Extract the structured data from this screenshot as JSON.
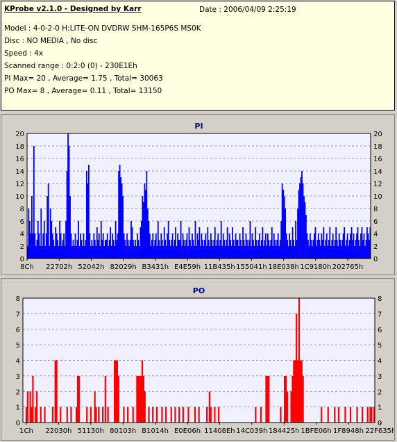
{
  "header": {
    "title": "KProbe v2.1.0 - Designed by Karr",
    "date": "Date : 2006/04/09 2:25:19",
    "model": "Model : 4-0-2-0 H:LITE-ON DVDRW SHM-165P6S MS0K",
    "disc": "Disc : NO MEDIA , No disc",
    "speed": "Speed : 4x",
    "range": "Scanned range : 0:2:0 (0) - 230E1Eh",
    "pi": "PI Max= 20 , Average= 1.75 , Total= 30063",
    "po": "PO Max= 8 , Average= 0.11 , Total= 13150"
  },
  "colors": {
    "pi": "#0000ff",
    "po": "#ff0000",
    "plot_bg": "#f0f0ff",
    "info_bg": "#ffffe1"
  },
  "chart_data": [
    {
      "type": "bar",
      "title": "PI",
      "ylim": [
        0,
        20
      ],
      "yticks": [
        0,
        2,
        4,
        6,
        8,
        10,
        12,
        14,
        16,
        18,
        20
      ],
      "xticklabels": [
        "8Ch",
        "22702h",
        "52042h",
        "82029h",
        "B3431h",
        "E4E59h",
        "11B435h",
        "155041h",
        "18E038h",
        "1C9180h",
        "202765h"
      ],
      "grid": true,
      "values": [
        2,
        8,
        6,
        4,
        10,
        4,
        18,
        4,
        2,
        3,
        6,
        4,
        2,
        8,
        2,
        4,
        6,
        2,
        4,
        10,
        12,
        2,
        8,
        6,
        4,
        3,
        2,
        5,
        4,
        3,
        2,
        6,
        4,
        2,
        3,
        4,
        2,
        6,
        14,
        20,
        18,
        10,
        4,
        2,
        3,
        2,
        4,
        2,
        3,
        6,
        2,
        4,
        3,
        2,
        4,
        2,
        3,
        14,
        12,
        15,
        4,
        2,
        3,
        2,
        4,
        3,
        2,
        5,
        3,
        4,
        2,
        6,
        3,
        4,
        2,
        3,
        3,
        4,
        2,
        3,
        5,
        2,
        4,
        3,
        2,
        6,
        3,
        4,
        14,
        15,
        13,
        12,
        10,
        4,
        3,
        2,
        4,
        3,
        2,
        3,
        6,
        5,
        3,
        2,
        3,
        2,
        4,
        3,
        2,
        5,
        6,
        10,
        9,
        12,
        11,
        14,
        8,
        6,
        4,
        2,
        3,
        4,
        2,
        3,
        4,
        2,
        6,
        3,
        2,
        4,
        3,
        2,
        5,
        3,
        2,
        4,
        6,
        3,
        2,
        3,
        4,
        2,
        3,
        5,
        2,
        4,
        3,
        3,
        6,
        2,
        4,
        3,
        2,
        3,
        4,
        2,
        5,
        3,
        2,
        4,
        3,
        2,
        6,
        2,
        4,
        3,
        5,
        2,
        4,
        3,
        2,
        3,
        4,
        2,
        5,
        3,
        2,
        4,
        3,
        2,
        3,
        5,
        2,
        3,
        4,
        2,
        3,
        6,
        2,
        4,
        3,
        2,
        3,
        5,
        2,
        4,
        3,
        2,
        5,
        3,
        2,
        4,
        3,
        3,
        2,
        4,
        3,
        2,
        5,
        3,
        2,
        4,
        3,
        2,
        3,
        6,
        2,
        4,
        3,
        2,
        5,
        3,
        2,
        3,
        4,
        2,
        3,
        5,
        2,
        3,
        4,
        2,
        4,
        3,
        2,
        3,
        5,
        2,
        4,
        3,
        2,
        3,
        4,
        2,
        3,
        6,
        12,
        11,
        10,
        8,
        4,
        3,
        2,
        4,
        3,
        2,
        5,
        3,
        2,
        6,
        3,
        8,
        11,
        12,
        13,
        14,
        12,
        10,
        9,
        7,
        4,
        3,
        2,
        4,
        3,
        2,
        3,
        4,
        5,
        2,
        3,
        4,
        3,
        2,
        4,
        3,
        5,
        2,
        3,
        4,
        2,
        3,
        5,
        2,
        3,
        4,
        2,
        3,
        5,
        3,
        2,
        4,
        3,
        2,
        3,
        4,
        5,
        2,
        3,
        4,
        2,
        3,
        4,
        5,
        3,
        4,
        2,
        3,
        4,
        5,
        3,
        2,
        4,
        5,
        3,
        4,
        2,
        3,
        5,
        4,
        3,
        5
      ]
    },
    {
      "type": "bar",
      "title": "PO",
      "ylim": [
        0,
        8
      ],
      "yticks": [
        0,
        1,
        2,
        3,
        4,
        5,
        6,
        7,
        8
      ],
      "xticklabels": [
        "1Ch",
        "22030h",
        "51130h",
        "80103h",
        "B1014h",
        "E0E06h",
        "11408Eh",
        "14C039h",
        "184425h",
        "1BFE06h",
        "1F8948h",
        "22F635h"
      ],
      "grid": true,
      "values": [
        0,
        0,
        1,
        2,
        0,
        2,
        1,
        3,
        0,
        1,
        2,
        0,
        0,
        1,
        0,
        0,
        1,
        0,
        0,
        0,
        0,
        0,
        1,
        0,
        4,
        4,
        0,
        0,
        1,
        0,
        0,
        0,
        0,
        1,
        0,
        0,
        1,
        0,
        0,
        0,
        1,
        3,
        3,
        0,
        0,
        0,
        0,
        0,
        1,
        0,
        0,
        1,
        0,
        0,
        2,
        1,
        0,
        1,
        0,
        0,
        1,
        0,
        3,
        0,
        1,
        0,
        0,
        0,
        0,
        4,
        4,
        4,
        3,
        0,
        0,
        0,
        1,
        0,
        0,
        1,
        0,
        0,
        0,
        1,
        0,
        0,
        3,
        3,
        3,
        3,
        4,
        3,
        2,
        0,
        0,
        1,
        0,
        0,
        1,
        0,
        0,
        1,
        0,
        0,
        0,
        1,
        0,
        0,
        1,
        0,
        0,
        0,
        1,
        0,
        0,
        1,
        0,
        0,
        1,
        0,
        0,
        1,
        0,
        0,
        0,
        1,
        0,
        0,
        0,
        0,
        1,
        0,
        0,
        1,
        0,
        0,
        0,
        0,
        0,
        1,
        0,
        2,
        1,
        0,
        0,
        1,
        0,
        0,
        1,
        0,
        0,
        0,
        0,
        0,
        0,
        0,
        0,
        0,
        0,
        0,
        0,
        0,
        0,
        0,
        0,
        0,
        0,
        0,
        0,
        0,
        0,
        0,
        0,
        0,
        0,
        0,
        1,
        0,
        0,
        0,
        1,
        0,
        0,
        0,
        3,
        3,
        3,
        0,
        0,
        0,
        0,
        0,
        0,
        0,
        0,
        1,
        0,
        0,
        3,
        3,
        2,
        0,
        0,
        2,
        3,
        4,
        4,
        7,
        4,
        8,
        4,
        4,
        3,
        0,
        0,
        0,
        0,
        0,
        0,
        0,
        0,
        0,
        0,
        0,
        0,
        0,
        1,
        0,
        0,
        0,
        0,
        1,
        0,
        0,
        0,
        0,
        1,
        0,
        0,
        1,
        0,
        0,
        0,
        0,
        1,
        0,
        0,
        0,
        1,
        0,
        0,
        0,
        0,
        1,
        0,
        0,
        0,
        1,
        0,
        0,
        0,
        1,
        0,
        1,
        1,
        0,
        1
      ]
    }
  ]
}
